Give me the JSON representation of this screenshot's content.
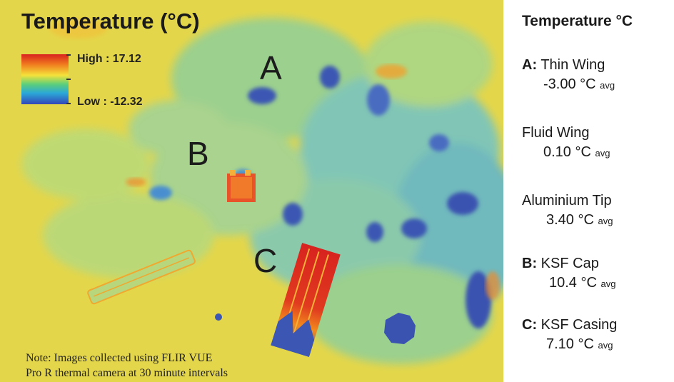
{
  "image": {
    "title": "Temperature (°C)",
    "legend": {
      "high": "High : 17.12",
      "low": "Low : -12.32"
    },
    "labels": {
      "a": "A",
      "b": "B",
      "c": "C"
    },
    "note_lines": [
      "Note: Images collected using FLIR VUE",
      "Pro R thermal camera at 30 minute intervals"
    ],
    "colors": {
      "background_yellow": "#e4d64a",
      "cool_cyan": "#6fc3c9",
      "cold_blue": "#3b57b3",
      "hot_red": "#d8231f",
      "hot_orange": "#f07a1e"
    }
  },
  "panel": {
    "title": "Temperature °C",
    "entries": [
      {
        "prefix": "A:",
        "name": "Thin Wing",
        "value": "-3.00",
        "unit": "°C",
        "suffix": "avg"
      },
      {
        "prefix": "",
        "name": "Fluid Wing",
        "value": "0.10",
        "unit": "°C",
        "suffix": "avg"
      },
      {
        "prefix": "",
        "name": "Aluminium Tip",
        "value": "3.40",
        "unit": "°C",
        "suffix": "avg"
      },
      {
        "prefix": "B:",
        "name": "KSF Cap",
        "value": "10.4",
        "unit": "°C",
        "suffix": "avg"
      },
      {
        "prefix": "C:",
        "name": "KSF Casing",
        "value": "7.10",
        "unit": "°C",
        "suffix": "avg"
      }
    ]
  }
}
